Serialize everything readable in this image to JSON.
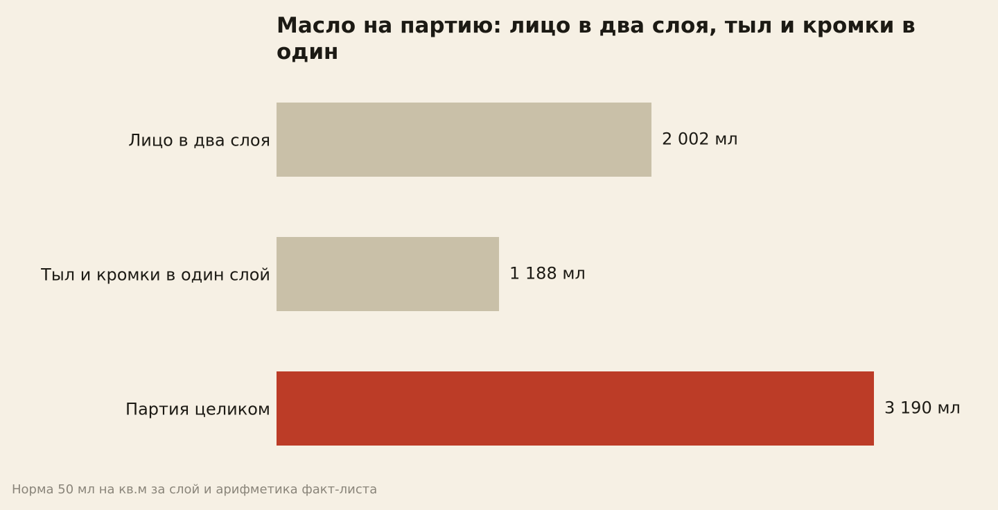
{
  "chart_data": {
    "type": "bar",
    "orientation": "horizontal",
    "title": "Масло на партию: лицо в два слоя, тыл и кромки в один",
    "categories": [
      "Лицо в два слоя",
      "Тыл и кромки в один слой",
      "Партия целиком"
    ],
    "values": [
      2002,
      1188,
      3190
    ],
    "value_labels": [
      "2 002 мл",
      "1 188 мл",
      "3 190 мл"
    ],
    "unit": "мл",
    "xlim": [
      0,
      3190
    ],
    "grid": false,
    "legend": "none",
    "colors": [
      "#c9c0a8",
      "#c9c0a8",
      "#bc3c27"
    ]
  },
  "footnote": "Норма 50 мл на кв.м за слой и арифметика факт-листа"
}
